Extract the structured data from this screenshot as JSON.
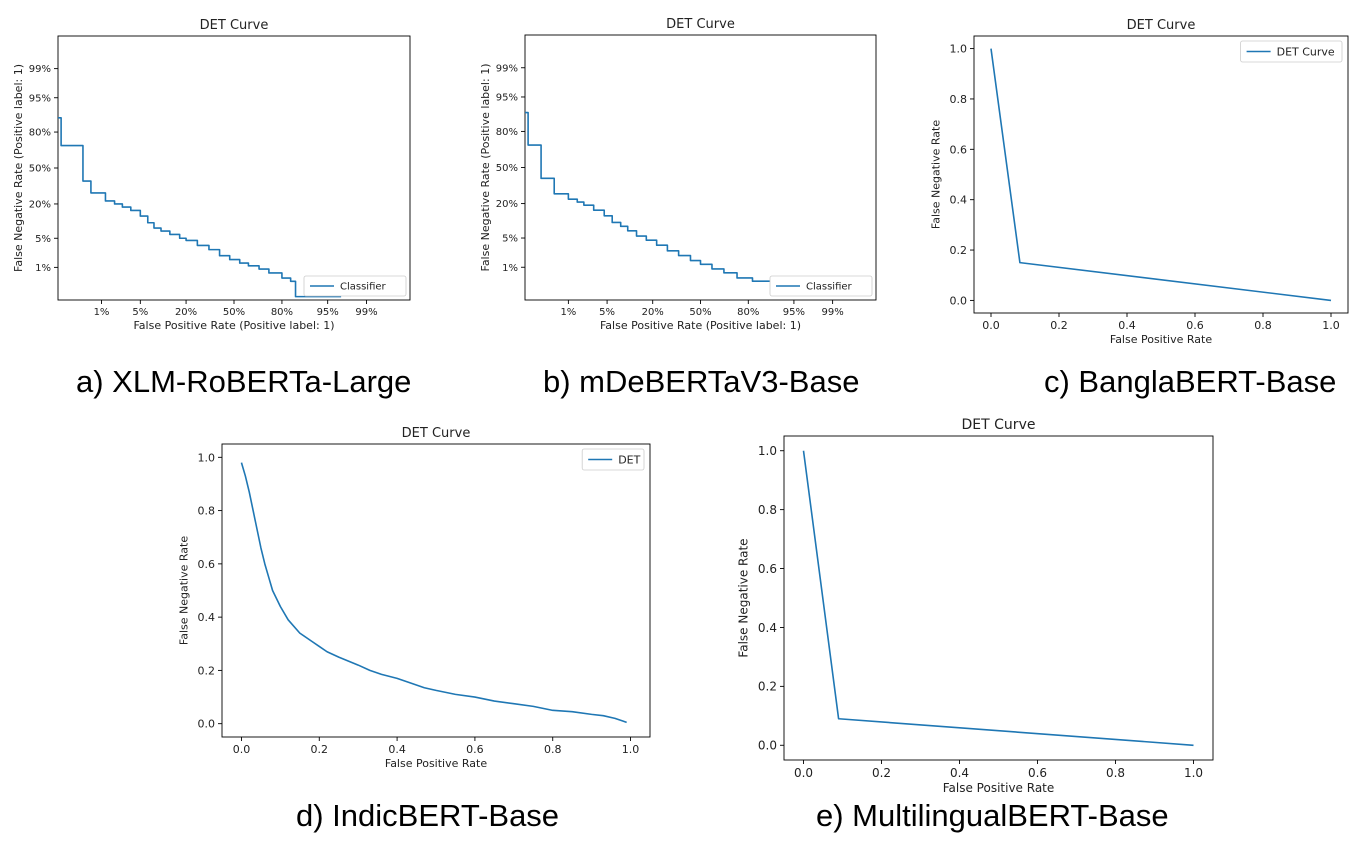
{
  "colors": {
    "line": "#1f77b4",
    "axis": "#000000",
    "text": "#222222"
  },
  "captions": {
    "a": "a) XLM-RoBERTa-Large",
    "b": "b) mDeBERTaV3-Base",
    "c": "c) BanglaBERT-Base",
    "d": "d) IndicBERT-Base",
    "e": "e) MultilingualBERT-Base"
  },
  "chart_data": [
    {
      "id": "a",
      "type": "line",
      "scale": "probit",
      "title": "DET Curve",
      "xlabel": "False Positive Rate (Positive label: 1)",
      "ylabel": "False Negative Rate (Positive label: 1)",
      "xticks": [
        "1%",
        "5%",
        "20%",
        "50%",
        "80%",
        "95%",
        "99%"
      ],
      "xtick_values": [
        0.01,
        0.05,
        0.2,
        0.5,
        0.8,
        0.95,
        0.99
      ],
      "yticks": [
        "1%",
        "5%",
        "20%",
        "50%",
        "80%",
        "95%",
        "99%"
      ],
      "ytick_values": [
        0.01,
        0.05,
        0.2,
        0.5,
        0.8,
        0.95,
        0.99
      ],
      "xlim": [
        0.001,
        0.999
      ],
      "ylim": [
        0.001,
        0.999
      ],
      "legend": [
        "Classifier"
      ],
      "legend_position": "lower-right",
      "series": [
        {
          "name": "Classifier",
          "step": true,
          "x": [
            0.001,
            0.0012,
            0.0012,
            0.004,
            0.004,
            0.006,
            0.006,
            0.012,
            0.012,
            0.018,
            0.025,
            0.035,
            0.05,
            0.065,
            0.08,
            0.1,
            0.13,
            0.17,
            0.2,
            0.26,
            0.33,
            0.4,
            0.47,
            0.54,
            0.6,
            0.67,
            0.73,
            0.8,
            0.84,
            0.86,
            0.86,
            0.97
          ],
          "y": [
            0.88,
            0.88,
            0.7,
            0.7,
            0.38,
            0.38,
            0.28,
            0.24,
            0.22,
            0.2,
            0.18,
            0.16,
            0.13,
            0.1,
            0.08,
            0.07,
            0.06,
            0.05,
            0.045,
            0.035,
            0.028,
            0.02,
            0.016,
            0.013,
            0.011,
            0.009,
            0.007,
            0.005,
            0.004,
            0.004,
            0.0013,
            0.0013
          ]
        }
      ]
    },
    {
      "id": "b",
      "type": "line",
      "scale": "probit",
      "title": "DET Curve",
      "xlabel": "False Positive Rate (Positive label: 1)",
      "ylabel": "False Negative Rate (Positive label: 1)",
      "xticks": [
        "1%",
        "5%",
        "20%",
        "50%",
        "80%",
        "95%",
        "99%"
      ],
      "xtick_values": [
        0.01,
        0.05,
        0.2,
        0.5,
        0.8,
        0.95,
        0.99
      ],
      "yticks": [
        "1%",
        "5%",
        "20%",
        "50%",
        "80%",
        "95%",
        "99%"
      ],
      "ytick_values": [
        0.01,
        0.05,
        0.2,
        0.5,
        0.8,
        0.95,
        0.99
      ],
      "xlim": [
        0.001,
        0.999
      ],
      "ylim": [
        0.001,
        0.999
      ],
      "legend": [
        "Classifier"
      ],
      "legend_position": "lower-right",
      "series": [
        {
          "name": "Classifier",
          "step": true,
          "x": [
            0.001,
            0.0012,
            0.0012,
            0.0025,
            0.0025,
            0.005,
            0.005,
            0.01,
            0.015,
            0.02,
            0.03,
            0.045,
            0.06,
            0.08,
            0.1,
            0.13,
            0.17,
            0.22,
            0.28,
            0.35,
            0.43,
            0.5,
            0.58,
            0.66,
            0.74,
            0.82,
            0.9,
            0.98,
            0.985
          ],
          "y": [
            0.9,
            0.9,
            0.7,
            0.7,
            0.4,
            0.4,
            0.27,
            0.23,
            0.21,
            0.19,
            0.16,
            0.13,
            0.1,
            0.085,
            0.07,
            0.055,
            0.045,
            0.035,
            0.026,
            0.02,
            0.015,
            0.012,
            0.009,
            0.007,
            0.005,
            0.004,
            0.0025,
            0.0018,
            0.0015
          ]
        }
      ]
    },
    {
      "id": "c",
      "type": "line",
      "title": "DET Curve",
      "xlabel": "False Positive Rate",
      "ylabel": "False Negative Rate",
      "xticks": [
        "0.0",
        "0.2",
        "0.4",
        "0.6",
        "0.8",
        "1.0"
      ],
      "xtick_values": [
        0,
        0.2,
        0.4,
        0.6,
        0.8,
        1.0
      ],
      "yticks": [
        "0.0",
        "0.2",
        "0.4",
        "0.6",
        "0.8",
        "1.0"
      ],
      "ytick_values": [
        0,
        0.2,
        0.4,
        0.6,
        0.8,
        1.0
      ],
      "xlim": [
        -0.05,
        1.05
      ],
      "ylim": [
        -0.05,
        1.05
      ],
      "legend": [
        "DET Curve"
      ],
      "legend_position": "top-right",
      "series": [
        {
          "name": "DET Curve",
          "x": [
            0.0,
            0.085,
            1.0
          ],
          "y": [
            1.0,
            0.15,
            0.0
          ]
        }
      ]
    },
    {
      "id": "d",
      "type": "line",
      "title": "DET Curve",
      "xlabel": "False Positive Rate",
      "ylabel": "False Negative Rate",
      "xticks": [
        "0.0",
        "0.2",
        "0.4",
        "0.6",
        "0.8",
        "1.0"
      ],
      "xtick_values": [
        0,
        0.2,
        0.4,
        0.6,
        0.8,
        1.0
      ],
      "yticks": [
        "0.0",
        "0.2",
        "0.4",
        "0.6",
        "0.8",
        "1.0"
      ],
      "ytick_values": [
        0,
        0.2,
        0.4,
        0.6,
        0.8,
        1.0
      ],
      "xlim": [
        -0.05,
        1.05
      ],
      "ylim": [
        -0.05,
        1.05
      ],
      "legend": [
        "DET"
      ],
      "legend_position": "top-right",
      "series": [
        {
          "name": "DET",
          "x": [
            0.0,
            0.01,
            0.02,
            0.03,
            0.04,
            0.05,
            0.06,
            0.07,
            0.08,
            0.1,
            0.12,
            0.15,
            0.18,
            0.2,
            0.22,
            0.25,
            0.3,
            0.33,
            0.36,
            0.4,
            0.43,
            0.47,
            0.5,
            0.55,
            0.6,
            0.65,
            0.7,
            0.75,
            0.8,
            0.85,
            0.9,
            0.93,
            0.96,
            0.98,
            0.99
          ],
          "y": [
            0.98,
            0.93,
            0.87,
            0.8,
            0.73,
            0.66,
            0.6,
            0.55,
            0.5,
            0.44,
            0.39,
            0.34,
            0.31,
            0.29,
            0.27,
            0.25,
            0.22,
            0.2,
            0.185,
            0.17,
            0.155,
            0.135,
            0.125,
            0.11,
            0.1,
            0.085,
            0.075,
            0.065,
            0.05,
            0.045,
            0.035,
            0.03,
            0.02,
            0.01,
            0.005
          ]
        }
      ]
    },
    {
      "id": "e",
      "type": "line",
      "title": "DET Curve",
      "xlabel": "False Positive Rate",
      "ylabel": "False Negative Rate",
      "xticks": [
        "0.0",
        "0.2",
        "0.4",
        "0.6",
        "0.8",
        "1.0"
      ],
      "xtick_values": [
        0,
        0.2,
        0.4,
        0.6,
        0.8,
        1.0
      ],
      "yticks": [
        "0.0",
        "0.2",
        "0.4",
        "0.6",
        "0.8",
        "1.0"
      ],
      "ytick_values": [
        0,
        0.2,
        0.4,
        0.6,
        0.8,
        1.0
      ],
      "xlim": [
        -0.05,
        1.05
      ],
      "ylim": [
        -0.05,
        1.05
      ],
      "legend": [],
      "legend_position": "none",
      "series": [
        {
          "name": "",
          "x": [
            0.0,
            0.09,
            1.0
          ],
          "y": [
            1.0,
            0.09,
            0.0
          ]
        }
      ]
    }
  ]
}
